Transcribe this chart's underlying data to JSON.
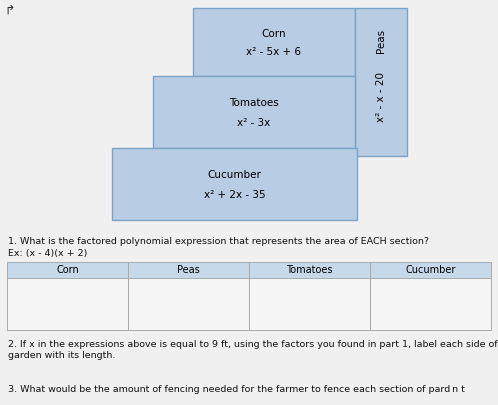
{
  "background_color": "#f0f0f0",
  "box_color": "#b8cce4",
  "box_edge_color": "#7ba3c8",
  "table_header_bg": "#c5d9ea",
  "table_cell_bg": "#f5f5f5",
  "table_border_color": "#aaaaaa",
  "corn_label": "Corn",
  "corn_expr": "x² - 5x + 6",
  "tomatoes_label": "Tomatoes",
  "tomatoes_expr": "x² - 3x",
  "cucumber_label": "Cucumber",
  "cucumber_expr": "x² + 2x - 35",
  "peas_label": "Peas",
  "peas_expr": "x² - x - 20",
  "question1": "1. What is the factored polynomial expression that represents the area of EACH section?",
  "example": "Ex: (x - 4)(x + 2)",
  "table_headers": [
    "Corn",
    "Peas",
    "Tomatoes",
    "Cucumber"
  ],
  "question2": "2. If x in the expressions above is equal to 9 ft, using the factors you found in part 1, label each side of the",
  "question2b": "garden with its length.",
  "question3": "3. What would be the amount of fencing needed for the farmer to fence each section of pard n t"
}
